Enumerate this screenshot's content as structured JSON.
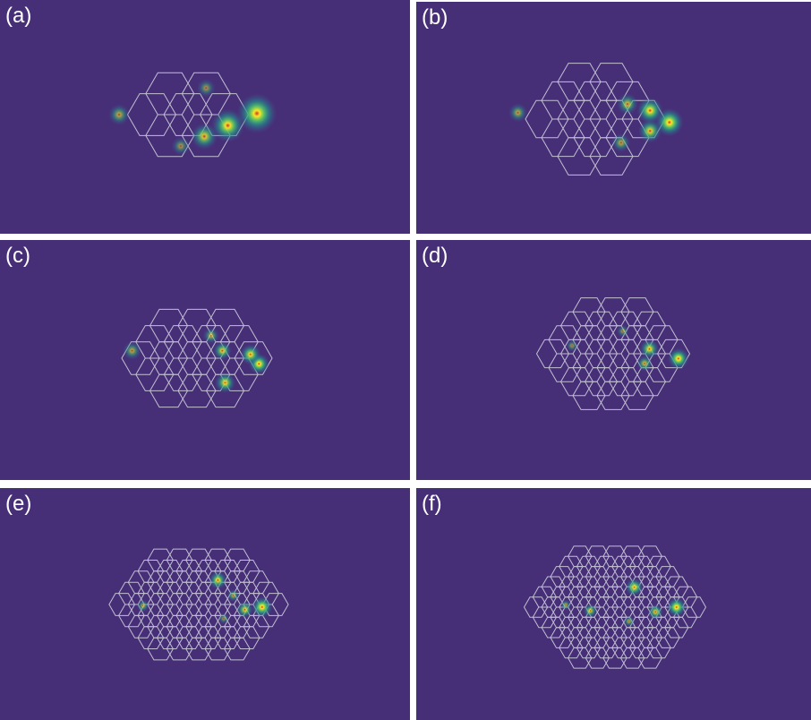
{
  "colors": {
    "background": "#472f78",
    "lattice": "#cfcfdc"
  },
  "panels": [
    {
      "label": "(a)",
      "rows": [
        {
          "count": 2
        },
        {
          "count": 3
        },
        {
          "count": 2
        }
      ]
    },
    {
      "label": "(b)",
      "rows": [
        {
          "count": 2
        },
        {
          "count": 3
        },
        {
          "count": 4
        },
        {
          "count": 3
        },
        {
          "count": 2
        }
      ]
    },
    {
      "label": "(c)",
      "rows": [
        {
          "count": 3
        },
        {
          "count": 4
        },
        {
          "count": 5
        },
        {
          "count": 4
        },
        {
          "count": 3
        }
      ]
    },
    {
      "label": "(d)",
      "rows": [
        {
          "count": 3
        },
        {
          "count": 4
        },
        {
          "count": 5
        },
        {
          "count": 6
        },
        {
          "count": 5
        },
        {
          "count": 4
        },
        {
          "count": 3
        }
      ]
    },
    {
      "label": "(e)",
      "rows": [
        {
          "count": 5
        },
        {
          "count": 6
        },
        {
          "count": 7
        },
        {
          "count": 8
        },
        {
          "count": 9
        },
        {
          "count": 8
        },
        {
          "count": 7
        },
        {
          "count": 6
        },
        {
          "count": 5
        }
      ]
    },
    {
      "label": "(f)",
      "rows": [
        {
          "count": 5
        },
        {
          "count": 6
        },
        {
          "count": 7
        },
        {
          "count": 8
        },
        {
          "count": 9
        },
        {
          "count": 10
        },
        {
          "count": 9
        },
        {
          "count": 8
        },
        {
          "count": 7
        },
        {
          "count": 6
        },
        {
          "count": 5
        }
      ]
    }
  ]
}
